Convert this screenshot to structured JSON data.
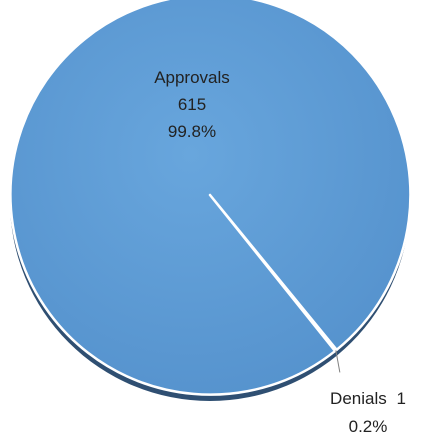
{
  "chart_data": {
    "type": "pie",
    "title": "",
    "slices": [
      {
        "label": "Approvals",
        "value": 615,
        "percent_label": "99.8%",
        "color": "#5b9bd5"
      },
      {
        "label": "Denials",
        "value": 1,
        "percent_label": "0.2%",
        "color": "#5b9bd5"
      }
    ],
    "legend": "none",
    "border_color": "#ffffff",
    "shadow_color": "#2f4f72"
  }
}
